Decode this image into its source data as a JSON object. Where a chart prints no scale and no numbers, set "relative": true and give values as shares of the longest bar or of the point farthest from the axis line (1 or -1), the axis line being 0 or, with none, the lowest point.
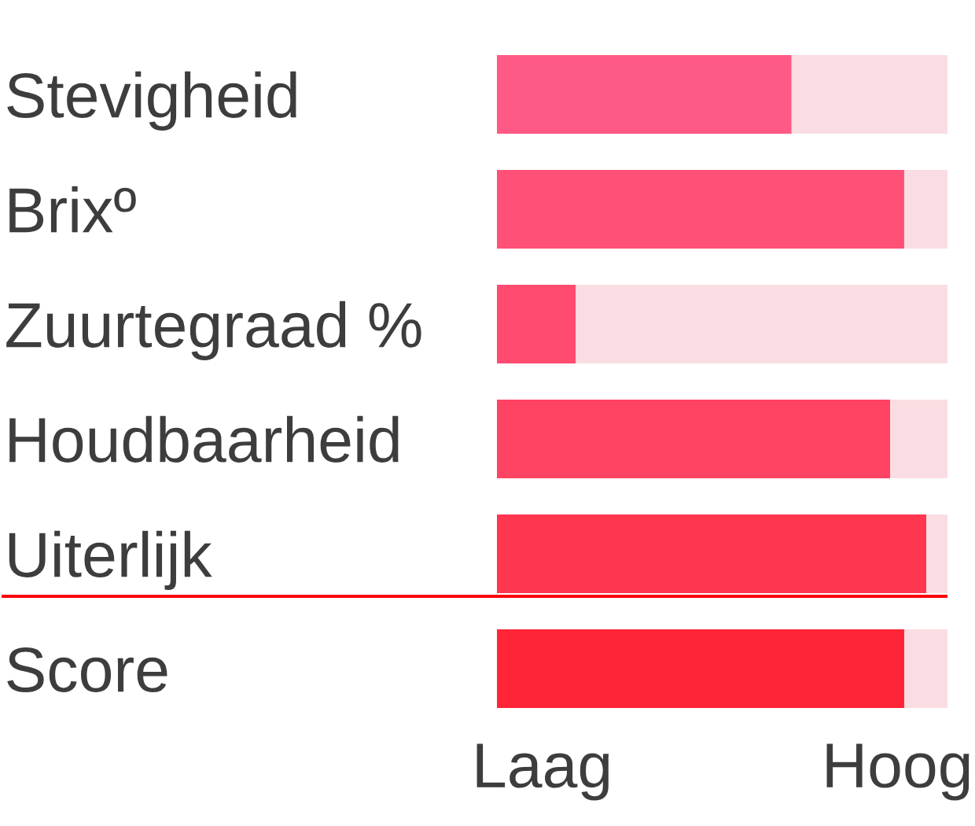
{
  "chart_data": {
    "type": "bar",
    "orientation": "horizontal",
    "stacked": true,
    "relative": true,
    "categories": [
      "Stevigheid",
      "Brixº",
      "Zuurtegraad %",
      "Houdbaarheid",
      "Uiterlijk",
      "Score"
    ],
    "series": [
      {
        "colors": [
          "#ff5a85",
          "#ff5077",
          "#ff4b70",
          "#ff4363",
          "#ff3650",
          "#ff2536"
        ],
        "values": [
          0.654,
          0.904,
          0.175,
          0.873,
          0.953,
          0.904
        ]
      },
      {
        "color": "#fadde2",
        "values": [
          0.346,
          0.096,
          0.825,
          0.127,
          0.047,
          0.096
        ]
      }
    ],
    "annotations": [
      "Laag",
      "Hoog"
    ],
    "grid": false
  }
}
